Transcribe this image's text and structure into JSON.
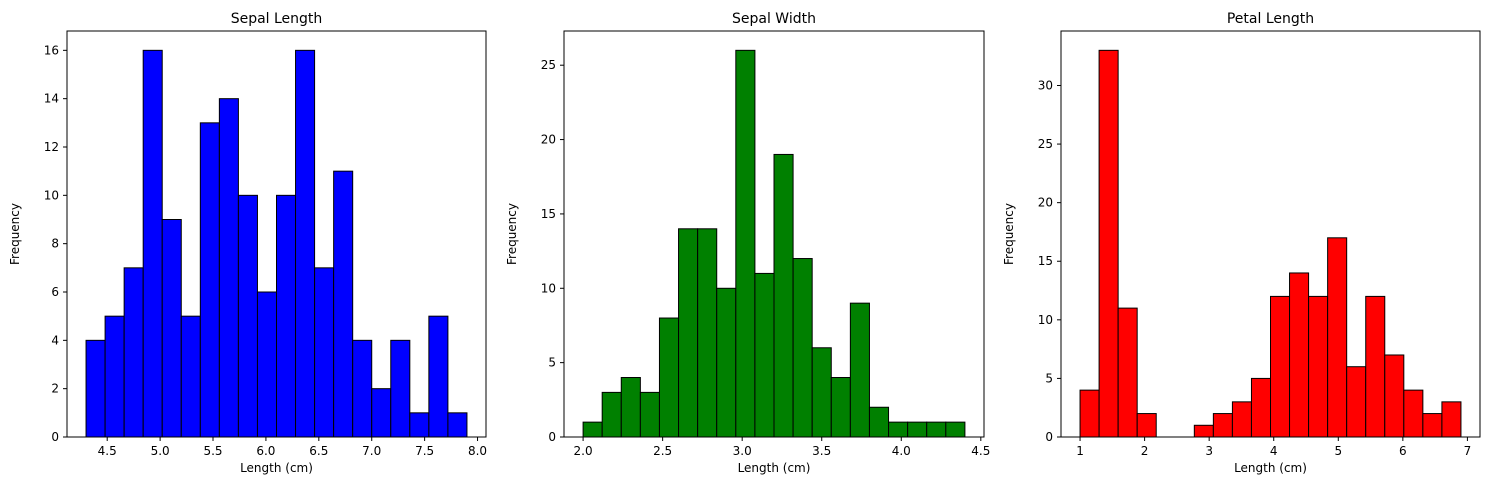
{
  "chart_data": [
    {
      "type": "bar",
      "title": "Sepal Length",
      "xlabel": "Length (cm)",
      "ylabel": "Frequency",
      "color": "#0000ff",
      "edgecolor": "#000000",
      "bin_start": 4.3,
      "bin_width": 0.18,
      "values": [
        4,
        5,
        7,
        16,
        9,
        5,
        13,
        14,
        10,
        6,
        10,
        16,
        7,
        11,
        4,
        2,
        4,
        1,
        5,
        1
      ],
      "xlim": [
        4.12,
        8.08
      ],
      "ylim": [
        0,
        16.8
      ],
      "xticks": [
        4.5,
        5.0,
        5.5,
        6.0,
        6.5,
        7.0,
        7.5,
        8.0
      ],
      "xtick_labels": [
        "4.5",
        "5.0",
        "5.5",
        "6.0",
        "6.5",
        "7.0",
        "7.5",
        "8.0"
      ],
      "yticks": [
        0,
        2,
        4,
        6,
        8,
        10,
        12,
        14,
        16
      ],
      "ytick_labels": [
        "0",
        "2",
        "4",
        "6",
        "8",
        "10",
        "12",
        "14",
        "16"
      ]
    },
    {
      "type": "bar",
      "title": "Sepal Width",
      "xlabel": "Length (cm)",
      "ylabel": "Frequency",
      "color": "#008000",
      "edgecolor": "#000000",
      "bin_start": 2.0,
      "bin_width": 0.12,
      "values": [
        1,
        3,
        4,
        3,
        8,
        14,
        14,
        10,
        26,
        11,
        19,
        12,
        6,
        4,
        9,
        2,
        1,
        1,
        1,
        1
      ],
      "xlim": [
        1.88,
        4.52
      ],
      "ylim": [
        0,
        27.3
      ],
      "xticks": [
        2.0,
        2.5,
        3.0,
        3.5,
        4.0,
        4.5
      ],
      "xtick_labels": [
        "2.0",
        "2.5",
        "3.0",
        "3.5",
        "4.0",
        "4.5"
      ],
      "yticks": [
        0,
        5,
        10,
        15,
        20,
        25
      ],
      "ytick_labels": [
        "0",
        "5",
        "10",
        "15",
        "20",
        "25"
      ]
    },
    {
      "type": "bar",
      "title": "Petal Length",
      "xlabel": "Length (cm)",
      "ylabel": "Frequency",
      "color": "#ff0000",
      "edgecolor": "#000000",
      "bin_start": 1.0,
      "bin_width": 0.295,
      "values": [
        4,
        33,
        11,
        2,
        0,
        0,
        1,
        2,
        3,
        5,
        12,
        14,
        12,
        17,
        6,
        12,
        7,
        4,
        2,
        3
      ],
      "xlim": [
        0.705,
        7.195
      ],
      "ylim": [
        0,
        34.65
      ],
      "xticks": [
        1,
        2,
        3,
        4,
        5,
        6,
        7
      ],
      "xtick_labels": [
        "1",
        "2",
        "3",
        "4",
        "5",
        "6",
        "7"
      ],
      "yticks": [
        0,
        5,
        10,
        15,
        20,
        25,
        30
      ],
      "ytick_labels": [
        "0",
        "5",
        "10",
        "15",
        "20",
        "25",
        "30"
      ]
    }
  ]
}
